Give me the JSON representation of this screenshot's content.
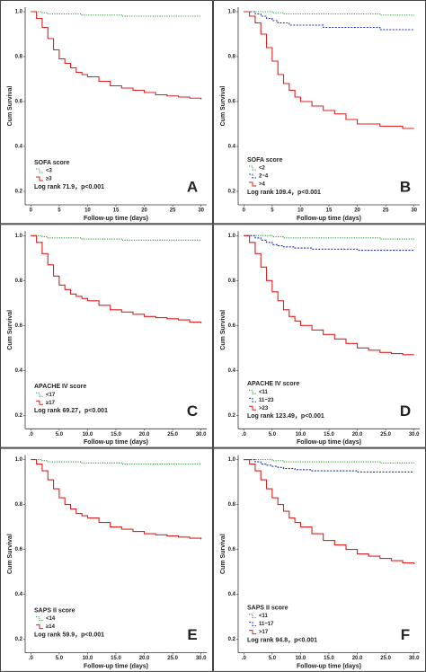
{
  "chart_data": [
    {
      "type": "line",
      "step": true,
      "panel_label": "A",
      "legend_title": "SOFA score",
      "annotation": "Log rank 71.9，p<0.001",
      "x_label": "Follow-up time (days)",
      "y_label": "Cum Survival",
      "xlim": [
        -1,
        31
      ],
      "ylim": [
        0.14,
        1.02
      ],
      "xticks": [
        0,
        5,
        10,
        15,
        20,
        25,
        30
      ],
      "yticks": [
        0.2,
        0.4,
        0.6,
        0.8,
        {
          "value": 1,
          "label": "1.0"
        }
      ],
      "x": [
        0,
        1,
        2,
        3,
        4,
        5,
        6,
        7,
        8,
        9,
        10,
        12,
        14,
        16,
        18,
        20,
        22,
        24,
        26,
        28,
        30
      ],
      "series": [
        {
          "name": "<3",
          "color": "#2e9e3e",
          "values": [
            1,
            1,
            0.995,
            0.99,
            0.99,
            0.99,
            0.99,
            0.99,
            0.99,
            0.985,
            0.985,
            0.985,
            0.985,
            0.98,
            0.98,
            0.98,
            0.98,
            0.98,
            0.98,
            0.98,
            0.98
          ]
        },
        {
          "name": "≥3",
          "color": "#e02020",
          "values": [
            1,
            0.97,
            0.93,
            0.88,
            0.83,
            0.79,
            0.77,
            0.75,
            0.73,
            0.72,
            0.71,
            0.69,
            0.67,
            0.66,
            0.65,
            0.64,
            0.63,
            0.625,
            0.62,
            0.615,
            0.61
          ]
        }
      ]
    },
    {
      "type": "line",
      "step": true,
      "panel_label": "B",
      "legend_title": "SOFA score",
      "annotation": "Log rank 109.4，p<0.001",
      "x_label": "Follow-up time (days)",
      "y_label": "Cum Survival",
      "xlim": [
        -1,
        31
      ],
      "ylim": [
        0.14,
        1.02
      ],
      "xticks": [
        0,
        5,
        10,
        15,
        20,
        25,
        30
      ],
      "yticks": [
        0.2,
        0.4,
        0.6,
        0.8,
        {
          "value": 1,
          "label": "1.0"
        }
      ],
      "x": [
        0,
        1,
        2,
        3,
        4,
        5,
        6,
        7,
        8,
        9,
        10,
        12,
        14,
        16,
        18,
        20,
        22,
        24,
        26,
        28,
        30
      ],
      "series": [
        {
          "name": "<2",
          "color": "#2e9e3e",
          "values": [
            1,
            1,
            1,
            1,
            1,
            0.995,
            0.995,
            0.99,
            0.99,
            0.99,
            0.99,
            0.99,
            0.99,
            0.99,
            0.99,
            0.99,
            0.99,
            0.985,
            0.985,
            0.985,
            0.985
          ]
        },
        {
          "name": "2~4",
          "color": "#2233aa",
          "values": [
            1,
            1,
            0.99,
            0.98,
            0.97,
            0.96,
            0.95,
            0.95,
            0.94,
            0.94,
            0.94,
            0.94,
            0.93,
            0.93,
            0.93,
            0.93,
            0.93,
            0.92,
            0.92,
            0.92,
            0.92
          ]
        },
        {
          "name": ">4",
          "color": "#e02020",
          "values": [
            1,
            0.98,
            0.95,
            0.9,
            0.84,
            0.78,
            0.72,
            0.68,
            0.65,
            0.62,
            0.6,
            0.58,
            0.56,
            0.545,
            0.52,
            0.5,
            0.5,
            0.49,
            0.49,
            0.48,
            0.48
          ]
        }
      ]
    },
    {
      "type": "line",
      "step": true,
      "panel_label": "C",
      "legend_title": "APACHE IV score",
      "annotation": "Log rank 69.27，p<0.001",
      "x_label": "Follow-up time (days)",
      "y_label": "Cum Survival",
      "xlim": [
        -1,
        31
      ],
      "ylim": [
        0.14,
        1.02
      ],
      "xticks": [
        {
          "value": 0,
          "label": ".0"
        },
        {
          "value": 5,
          "label": "5.0"
        },
        {
          "value": 10,
          "label": "10.0"
        },
        {
          "value": 15,
          "label": "15.0"
        },
        {
          "value": 20,
          "label": "20.0"
        },
        {
          "value": 25,
          "label": "25.0"
        },
        {
          "value": 30,
          "label": "30.0"
        }
      ],
      "yticks": [
        0.2,
        0.4,
        0.6,
        0.8,
        {
          "value": 1,
          "label": "1.0"
        }
      ],
      "x": [
        0,
        1,
        2,
        3,
        4,
        5,
        6,
        7,
        8,
        9,
        10,
        12,
        14,
        16,
        18,
        20,
        22,
        24,
        26,
        28,
        30
      ],
      "series": [
        {
          "name": "<17",
          "color": "#2e9e3e",
          "values": [
            1,
            1,
            0.995,
            0.99,
            0.99,
            0.99,
            0.99,
            0.99,
            0.99,
            0.985,
            0.985,
            0.985,
            0.985,
            0.98,
            0.98,
            0.98,
            0.98,
            0.98,
            0.98,
            0.98,
            0.98
          ]
        },
        {
          "name": "≥17",
          "color": "#e02020",
          "values": [
            1,
            0.97,
            0.92,
            0.87,
            0.82,
            0.78,
            0.76,
            0.74,
            0.73,
            0.72,
            0.71,
            0.69,
            0.67,
            0.66,
            0.65,
            0.64,
            0.635,
            0.63,
            0.625,
            0.615,
            0.61
          ]
        }
      ]
    },
    {
      "type": "line",
      "step": true,
      "panel_label": "D",
      "legend_title": "APACHE IV score",
      "annotation": "Log rank 123.49，p<0.001",
      "x_label": "Follow-up time (days)",
      "y_label": "Cum Survival",
      "xlim": [
        -1,
        31
      ],
      "ylim": [
        0.14,
        1.02
      ],
      "xticks": [
        {
          "value": 0,
          "label": ".0"
        },
        {
          "value": 5,
          "label": "5.0"
        },
        {
          "value": 10,
          "label": "10.0"
        },
        {
          "value": 15,
          "label": "15.0"
        },
        {
          "value": 20,
          "label": "20.0"
        },
        {
          "value": 25,
          "label": "25.0"
        },
        {
          "value": 30,
          "label": "30.0"
        }
      ],
      "yticks": [
        0.2,
        0.4,
        0.6,
        0.8,
        {
          "value": 1,
          "label": "1.0"
        }
      ],
      "x": [
        0,
        1,
        2,
        3,
        4,
        5,
        6,
        7,
        8,
        9,
        10,
        12,
        14,
        16,
        18,
        20,
        22,
        24,
        26,
        28,
        30
      ],
      "series": [
        {
          "name": "<11",
          "color": "#2e9e3e",
          "values": [
            1,
            1,
            1,
            1,
            1,
            0.995,
            0.995,
            0.99,
            0.99,
            0.99,
            0.99,
            0.99,
            0.99,
            0.99,
            0.99,
            0.99,
            0.99,
            0.985,
            0.985,
            0.985,
            0.985
          ]
        },
        {
          "name": "11~23",
          "color": "#2233aa",
          "values": [
            1,
            1,
            0.99,
            0.98,
            0.97,
            0.96,
            0.955,
            0.95,
            0.95,
            0.945,
            0.945,
            0.94,
            0.94,
            0.94,
            0.94,
            0.935,
            0.935,
            0.935,
            0.935,
            0.935,
            0.935
          ]
        },
        {
          "name": ">23",
          "color": "#e02020",
          "values": [
            1,
            0.97,
            0.92,
            0.86,
            0.8,
            0.75,
            0.71,
            0.67,
            0.64,
            0.62,
            0.6,
            0.58,
            0.56,
            0.54,
            0.52,
            0.5,
            0.49,
            0.48,
            0.475,
            0.47,
            0.47
          ]
        }
      ]
    },
    {
      "type": "line",
      "step": true,
      "panel_label": "E",
      "legend_title": "SAPS II score",
      "annotation": "Log rank 59.9，p<0.001",
      "x_label": "Follow-up time (days)",
      "y_label": "Cum Survival",
      "xlim": [
        -1,
        31
      ],
      "ylim": [
        0.14,
        1.02
      ],
      "xticks": [
        {
          "value": 0,
          "label": ".0"
        },
        {
          "value": 5,
          "label": "5.0"
        },
        {
          "value": 10,
          "label": "10.0"
        },
        {
          "value": 15,
          "label": "15.0"
        },
        {
          "value": 20,
          "label": "20.0"
        },
        {
          "value": 25,
          "label": "25.0"
        },
        {
          "value": 30,
          "label": "30.0"
        }
      ],
      "yticks": [
        0.2,
        0.4,
        0.6,
        0.8,
        {
          "value": 1,
          "label": "1.0"
        }
      ],
      "x": [
        0,
        1,
        2,
        3,
        4,
        5,
        6,
        7,
        8,
        9,
        10,
        12,
        14,
        16,
        18,
        20,
        22,
        24,
        26,
        28,
        30
      ],
      "series": [
        {
          "name": "<14",
          "color": "#2e9e3e",
          "values": [
            1,
            1,
            0.995,
            0.99,
            0.99,
            0.99,
            0.99,
            0.99,
            0.99,
            0.985,
            0.985,
            0.985,
            0.985,
            0.98,
            0.98,
            0.98,
            0.98,
            0.98,
            0.98,
            0.98,
            0.98
          ]
        },
        {
          "name": "≥14",
          "color": "#e02020",
          "values": [
            1,
            0.98,
            0.95,
            0.91,
            0.87,
            0.83,
            0.8,
            0.78,
            0.76,
            0.75,
            0.74,
            0.72,
            0.7,
            0.69,
            0.68,
            0.67,
            0.665,
            0.66,
            0.655,
            0.65,
            0.645
          ]
        }
      ]
    },
    {
      "type": "line",
      "step": true,
      "panel_label": "F",
      "legend_title": "SAPS II score",
      "annotation": "Log rank 94.8，p<0.001",
      "x_label": "Follow-up time (days)",
      "y_label": "Cum Survival",
      "xlim": [
        -1,
        31
      ],
      "ylim": [
        0.14,
        1.02
      ],
      "xticks": [
        {
          "value": 0,
          "label": ".0"
        },
        {
          "value": 5,
          "label": "5.0"
        },
        {
          "value": 10,
          "label": "10.0"
        },
        {
          "value": 15,
          "label": "15.0"
        },
        {
          "value": 20,
          "label": "20.0"
        },
        {
          "value": 25,
          "label": "25.0"
        },
        {
          "value": 30,
          "label": "30.0"
        }
      ],
      "yticks": [
        0.2,
        0.4,
        0.6,
        0.8,
        {
          "value": 1,
          "label": "1.0"
        }
      ],
      "x": [
        0,
        1,
        2,
        3,
        4,
        5,
        6,
        7,
        8,
        9,
        10,
        12,
        14,
        16,
        18,
        20,
        22,
        24,
        26,
        28,
        30
      ],
      "series": [
        {
          "name": "<11",
          "color": "#2e9e3e",
          "values": [
            1,
            1,
            1,
            1,
            1,
            0.995,
            0.995,
            0.99,
            0.99,
            0.99,
            0.99,
            0.99,
            0.99,
            0.99,
            0.99,
            0.99,
            0.99,
            0.985,
            0.985,
            0.985,
            0.985
          ]
        },
        {
          "name": "11~17",
          "color": "#2233aa",
          "values": [
            1,
            1,
            0.99,
            0.98,
            0.975,
            0.97,
            0.965,
            0.96,
            0.96,
            0.955,
            0.955,
            0.95,
            0.95,
            0.95,
            0.95,
            0.945,
            0.945,
            0.945,
            0.945,
            0.945,
            0.945
          ]
        },
        {
          "name": ">17",
          "color": "#e02020",
          "values": [
            1,
            0.98,
            0.95,
            0.91,
            0.87,
            0.83,
            0.8,
            0.77,
            0.74,
            0.72,
            0.7,
            0.67,
            0.64,
            0.62,
            0.6,
            0.58,
            0.57,
            0.56,
            0.55,
            0.54,
            0.535
          ]
        }
      ]
    }
  ]
}
